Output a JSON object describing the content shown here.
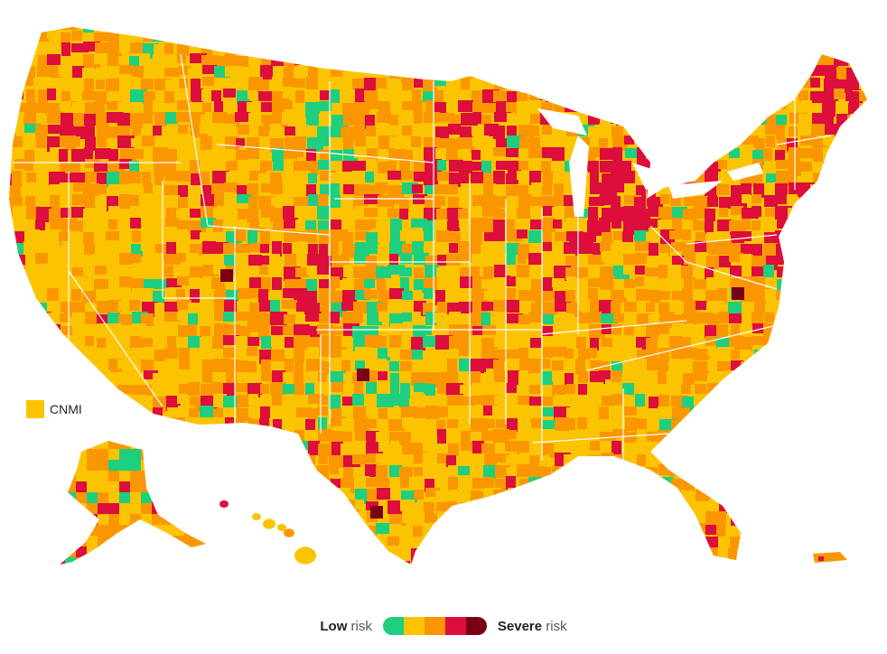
{
  "map": {
    "territory_label": "CNMI",
    "territory_color": "#fcc400",
    "risk_colors": [
      "#1dcf7e",
      "#fcc400",
      "#fa9700",
      "#dd0d3c",
      "#7a0016"
    ],
    "legend": {
      "low_bold": "Low",
      "low_rest": " risk",
      "severe_bold": "Severe",
      "severe_rest": " risk",
      "scale_colors": [
        "#1dcf7e",
        "#fcc400",
        "#fa9700",
        "#dd0d3c",
        "#7a0016"
      ]
    }
  }
}
